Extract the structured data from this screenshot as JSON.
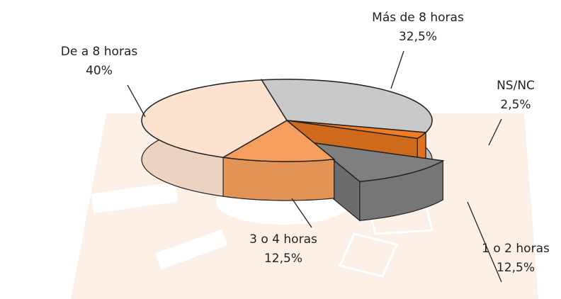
{
  "chart_data": {
    "type": "pie3d",
    "categories": [
      "Más de 8 horas",
      "NS/NC",
      "1 o 2 horas",
      "3 o 4 horas",
      "De  a 8 horas"
    ],
    "values": [
      32.5,
      2.5,
      12.5,
      12.5,
      40
    ],
    "value_labels": [
      "32,5%",
      "2,5%",
      "12,5%",
      "12,5%",
      "40%"
    ],
    "colors": [
      "#c9c9c9",
      "#f47b20",
      "#7f7f81",
      "#f59e5e",
      "#fde2d0"
    ],
    "exploded": [
      false,
      false,
      true,
      false,
      false
    ]
  }
}
